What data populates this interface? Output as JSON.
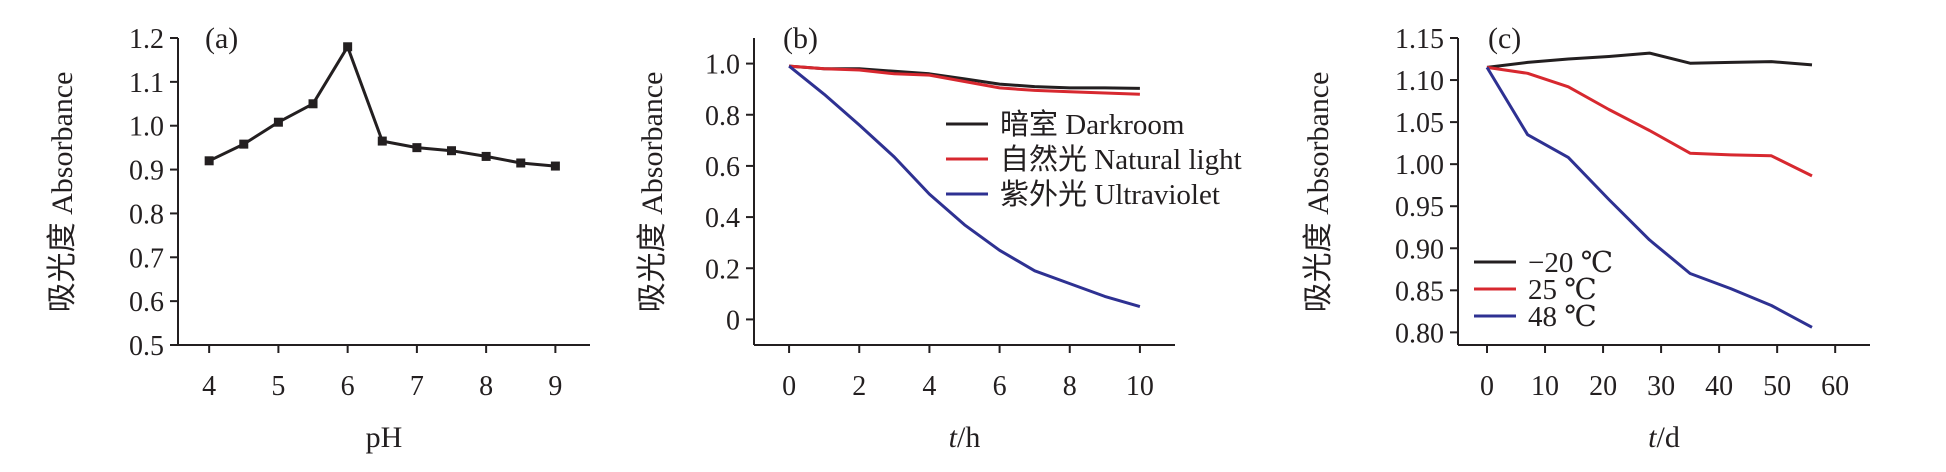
{
  "chart_data": [
    {
      "type": "line",
      "panel_label": "(a)",
      "xlabel": "pH",
      "ylabel": "吸光度 Absorbance",
      "xlim": [
        3.55,
        9.5
      ],
      "ylim": [
        0.5,
        1.2
      ],
      "xticks": [
        4,
        5,
        6,
        7,
        8,
        9
      ],
      "xtick_labels": [
        "4",
        "5",
        "6",
        "7",
        "8",
        "9"
      ],
      "yticks": [
        0.5,
        0.6,
        0.7,
        0.8,
        0.9,
        1.0,
        1.1,
        1.2
      ],
      "ytick_labels": [
        "0.5",
        "0.6",
        "0.7",
        "0.8",
        "0.9",
        "1.0",
        "1.1",
        "1.2"
      ],
      "markers": true,
      "series": [
        {
          "name": "",
          "color": "#231f20",
          "x": [
            4,
            4.5,
            5,
            5.5,
            6,
            6.5,
            7,
            7.5,
            8,
            8.5,
            9
          ],
          "y": [
            0.92,
            0.958,
            1.008,
            1.05,
            1.18,
            0.965,
            0.95,
            0.943,
            0.93,
            0.915,
            0.908
          ]
        }
      ],
      "legend": []
    },
    {
      "type": "line",
      "panel_label": "(b)",
      "xlabel_italic": "t",
      "xlabel_unit": "/h",
      "ylabel": "吸光度 Absorbance",
      "xlim": [
        -1,
        11
      ],
      "ylim": [
        -0.1,
        1.1
      ],
      "xticks": [
        0,
        2,
        4,
        6,
        8,
        10
      ],
      "xtick_labels": [
        "0",
        "2",
        "4",
        "6",
        "8",
        "10"
      ],
      "yticks": [
        0,
        0.2,
        0.4,
        0.6,
        0.8,
        1.0
      ],
      "ytick_labels": [
        "0",
        "0.2",
        "0.4",
        "0.6",
        "0.8",
        "1.0"
      ],
      "markers": false,
      "legend_position": "middle-right",
      "series": [
        {
          "name": "暗室 Darkroom",
          "color": "#231f20",
          "x": [
            0,
            1,
            2,
            3,
            4,
            5,
            6,
            7,
            8,
            9,
            10
          ],
          "y": [
            0.99,
            0.98,
            0.98,
            0.97,
            0.96,
            0.94,
            0.92,
            0.91,
            0.905,
            0.905,
            0.903
          ]
        },
        {
          "name": "自然光 Natural light",
          "color": "#d7282f",
          "x": [
            0,
            1,
            2,
            3,
            4,
            5,
            6,
            7,
            8,
            9,
            10
          ],
          "y": [
            0.99,
            0.98,
            0.975,
            0.96,
            0.955,
            0.93,
            0.905,
            0.895,
            0.89,
            0.885,
            0.88
          ]
        },
        {
          "name": "紫外光 Ultraviolet",
          "color": "#2e3192",
          "x": [
            0,
            1,
            2,
            3,
            4,
            5,
            6,
            7,
            8,
            9,
            10
          ],
          "y": [
            0.99,
            0.88,
            0.76,
            0.635,
            0.49,
            0.37,
            0.27,
            0.19,
            0.14,
            0.09,
            0.05
          ]
        }
      ]
    },
    {
      "type": "line",
      "panel_label": "(c)",
      "xlabel_italic": "t",
      "xlabel_unit": "/d",
      "ylabel": "吸光度 Absorbance",
      "xlim": [
        -5,
        66
      ],
      "ylim": [
        0.785,
        1.15
      ],
      "xticks": [
        0,
        10,
        20,
        30,
        40,
        50,
        60
      ],
      "xtick_labels": [
        "0",
        "10",
        "20",
        "30",
        "40",
        "50",
        "60"
      ],
      "yticks": [
        0.8,
        0.85,
        0.9,
        0.95,
        1.0,
        1.05,
        1.1,
        1.15
      ],
      "ytick_labels": [
        "0.80",
        "0.85",
        "0.90",
        "0.95",
        "1.00",
        "1.05",
        "1.10",
        "1.15"
      ],
      "markers": false,
      "legend_position": "bottom-left",
      "series": [
        {
          "name": "−20 ℃",
          "color": "#231f20",
          "x": [
            0,
            7,
            14,
            21,
            28,
            35,
            42,
            49,
            56
          ],
          "y": [
            1.115,
            1.121,
            1.125,
            1.128,
            1.132,
            1.12,
            1.121,
            1.122,
            1.118
          ]
        },
        {
          "name": "25 ℃",
          "color": "#d7282f",
          "x": [
            0,
            7,
            14,
            21,
            28,
            35,
            42,
            49,
            56
          ],
          "y": [
            1.115,
            1.108,
            1.092,
            1.065,
            1.04,
            1.013,
            1.011,
            1.01,
            0.986
          ]
        },
        {
          "name": "48 ℃",
          "color": "#2e3192",
          "x": [
            0,
            7,
            14,
            21,
            28,
            35,
            42,
            49,
            56
          ],
          "y": [
            1.115,
            1.035,
            1.008,
            0.958,
            0.91,
            0.87,
            0.852,
            0.832,
            0.806
          ]
        }
      ]
    }
  ]
}
